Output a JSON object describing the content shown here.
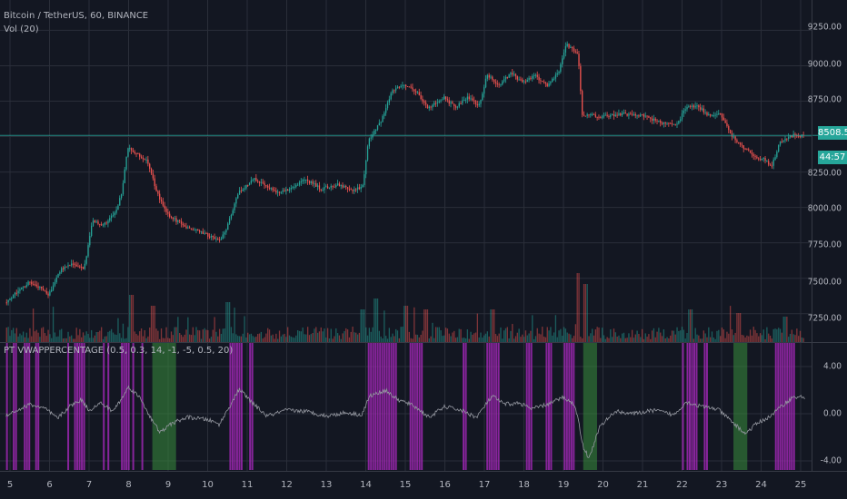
{
  "header": {
    "symbol": "Bitcoin / TetherUS, 60, BINANCE",
    "volume_label": "Vol (20)",
    "indicator_label": "PT VWAPPERCENTAGE (0.5, 0.3, 14, -1, -5, 0.5, 20)"
  },
  "price_axis": {
    "ticks": [
      "9250.00",
      "9000.00",
      "8750.00",
      "8500.00",
      "8250.00",
      "8000.00",
      "7750.00",
      "7500.00",
      "7250.00"
    ],
    "last_price": "8508.50",
    "countdown": "44:57"
  },
  "indicator_axis": {
    "ticks": [
      "4.00",
      "0.00",
      "-4.00"
    ]
  },
  "time_axis": {
    "ticks": [
      "5",
      "6",
      "7",
      "8",
      "9",
      "10",
      "11",
      "12",
      "13",
      "14",
      "15",
      "16",
      "17",
      "18",
      "19",
      "20",
      "21",
      "22",
      "23",
      "24",
      "25"
    ]
  },
  "colors": {
    "background": "#131722",
    "up": "#26a69a",
    "down": "#ef5350",
    "grid": "#2a2e39",
    "magenta": "#9c27b0",
    "green": "#388e3c",
    "indicator_line": "#9598a1"
  },
  "chart_data": [
    {
      "type": "candlestick",
      "title": "Bitcoin / TetherUS, 60, BINANCE",
      "ylim": [
        7050,
        9400
      ],
      "x_range": [
        4.9,
        25.1
      ],
      "last_price": 8508.5,
      "path": [
        [
          4.9,
          7330
        ],
        [
          5.2,
          7400
        ],
        [
          5.5,
          7470
        ],
        [
          5.8,
          7430
        ],
        [
          6.0,
          7380
        ],
        [
          6.3,
          7560
        ],
        [
          6.6,
          7600
        ],
        [
          6.9,
          7560
        ],
        [
          7.1,
          7900
        ],
        [
          7.4,
          7880
        ],
        [
          7.7,
          7960
        ],
        [
          7.85,
          8100
        ],
        [
          8.0,
          8420
        ],
        [
          8.2,
          8380
        ],
        [
          8.5,
          8330
        ],
        [
          8.75,
          8100
        ],
        [
          9.0,
          7950
        ],
        [
          9.5,
          7860
        ],
        [
          10.0,
          7810
        ],
        [
          10.3,
          7760
        ],
        [
          10.5,
          7850
        ],
        [
          10.8,
          8100
        ],
        [
          11.2,
          8200
        ],
        [
          11.5,
          8160
        ],
        [
          11.8,
          8100
        ],
        [
          12.0,
          8120
        ],
        [
          12.5,
          8200
        ],
        [
          12.9,
          8130
        ],
        [
          13.3,
          8160
        ],
        [
          13.7,
          8120
        ],
        [
          13.95,
          8150
        ],
        [
          14.1,
          8480
        ],
        [
          14.4,
          8600
        ],
        [
          14.7,
          8830
        ],
        [
          15.0,
          8870
        ],
        [
          15.3,
          8820
        ],
        [
          15.6,
          8700
        ],
        [
          16.0,
          8780
        ],
        [
          16.3,
          8700
        ],
        [
          16.6,
          8780
        ],
        [
          16.9,
          8720
        ],
        [
          17.1,
          8940
        ],
        [
          17.4,
          8860
        ],
        [
          17.7,
          8950
        ],
        [
          18.0,
          8880
        ],
        [
          18.3,
          8930
        ],
        [
          18.6,
          8860
        ],
        [
          18.9,
          8950
        ],
        [
          19.1,
          9150
        ],
        [
          19.4,
          9080
        ],
        [
          19.5,
          8650
        ],
        [
          19.7,
          8650
        ],
        [
          20.0,
          8640
        ],
        [
          20.5,
          8660
        ],
        [
          21.0,
          8650
        ],
        [
          21.5,
          8600
        ],
        [
          21.9,
          8580
        ],
        [
          22.1,
          8700
        ],
        [
          22.4,
          8720
        ],
        [
          22.7,
          8650
        ],
        [
          23.0,
          8660
        ],
        [
          23.3,
          8500
        ],
        [
          23.6,
          8420
        ],
        [
          23.9,
          8350
        ],
        [
          24.1,
          8340
        ],
        [
          24.3,
          8290
        ],
        [
          24.5,
          8460
        ],
        [
          24.8,
          8508
        ]
      ]
    },
    {
      "type": "bar",
      "title": "Vol (20)",
      "volume_spikes": [
        [
          8.05,
          0.65
        ],
        [
          8.6,
          0.5
        ],
        [
          10.5,
          0.55
        ],
        [
          13.9,
          0.45
        ],
        [
          14.25,
          0.6
        ],
        [
          15.0,
          0.5
        ],
        [
          15.5,
          0.45
        ],
        [
          17.2,
          0.45
        ],
        [
          19.35,
          0.95
        ],
        [
          19.55,
          0.8
        ],
        [
          22.2,
          0.45
        ],
        [
          23.4,
          0.4
        ],
        [
          24.6,
          0.35
        ]
      ]
    },
    {
      "type": "line",
      "title": "PT VWAPPERCENTAGE (0.5, 0.3, 14, -1, -5, 0.5, 20)",
      "ylim": [
        -4.2,
        5.5
      ],
      "series": [
        {
          "values_xy": [
            [
              4.9,
              -0.1
            ],
            [
              5.2,
              0.3
            ],
            [
              5.5,
              0.8
            ],
            [
              5.9,
              0.4
            ],
            [
              6.2,
              -0.4
            ],
            [
              6.5,
              0.6
            ],
            [
              6.8,
              1.2
            ],
            [
              7.0,
              0.3
            ],
            [
              7.3,
              0.9
            ],
            [
              7.6,
              0.2
            ],
            [
              7.85,
              1.4
            ],
            [
              8.0,
              2.3
            ],
            [
              8.3,
              1.3
            ],
            [
              8.6,
              -0.6
            ],
            [
              8.8,
              -1.6
            ],
            [
              9.1,
              -0.8
            ],
            [
              9.5,
              -0.3
            ],
            [
              10.0,
              -0.5
            ],
            [
              10.3,
              -0.9
            ],
            [
              10.6,
              0.9
            ],
            [
              10.8,
              2.1
            ],
            [
              11.1,
              1.0
            ],
            [
              11.5,
              -0.2
            ],
            [
              12.0,
              0.3
            ],
            [
              12.5,
              0.2
            ],
            [
              13.0,
              -0.2
            ],
            [
              13.5,
              0.1
            ],
            [
              13.9,
              -0.1
            ],
            [
              14.1,
              1.5
            ],
            [
              14.5,
              2.0
            ],
            [
              14.8,
              1.2
            ],
            [
              15.2,
              0.7
            ],
            [
              15.6,
              -0.3
            ],
            [
              16.0,
              0.6
            ],
            [
              16.4,
              0.3
            ],
            [
              16.8,
              -0.3
            ],
            [
              17.2,
              1.5
            ],
            [
              17.5,
              0.8
            ],
            [
              17.9,
              0.9
            ],
            [
              18.2,
              0.4
            ],
            [
              18.6,
              0.8
            ],
            [
              19.0,
              1.4
            ],
            [
              19.3,
              0.7
            ],
            [
              19.5,
              -2.8
            ],
            [
              19.65,
              -3.8
            ],
            [
              19.9,
              -1.2
            ],
            [
              20.3,
              0.2
            ],
            [
              20.8,
              0.0
            ],
            [
              21.3,
              0.3
            ],
            [
              21.8,
              -0.1
            ],
            [
              22.1,
              1.0
            ],
            [
              22.5,
              0.6
            ],
            [
              22.9,
              0.4
            ],
            [
              23.3,
              -0.8
            ],
            [
              23.6,
              -1.7
            ],
            [
              23.9,
              -0.8
            ],
            [
              24.2,
              -0.3
            ],
            [
              24.5,
              0.6
            ],
            [
              24.8,
              1.4
            ]
          ]
        }
      ],
      "magenta_zones": [
        [
          4.9,
          5.15
        ],
        [
          5.35,
          5.75
        ],
        [
          6.45,
          6.95
        ],
        [
          7.35,
          7.55
        ],
        [
          7.75,
          8.35
        ],
        [
          8.45,
          8.55
        ],
        [
          10.55,
          10.95
        ],
        [
          11.05,
          11.15
        ],
        [
          14.05,
          14.75
        ],
        [
          15.05,
          15.45
        ],
        [
          16.45,
          16.55
        ],
        [
          17.05,
          17.35
        ],
        [
          18.05,
          18.25
        ],
        [
          18.55,
          18.75
        ],
        [
          18.95,
          19.25
        ],
        [
          22.0,
          22.4
        ],
        [
          22.55,
          22.65
        ],
        [
          24.35,
          24.85
        ]
      ],
      "green_zones": [
        [
          8.6,
          9.2
        ],
        [
          19.5,
          19.85
        ],
        [
          23.3,
          23.65
        ]
      ]
    }
  ]
}
